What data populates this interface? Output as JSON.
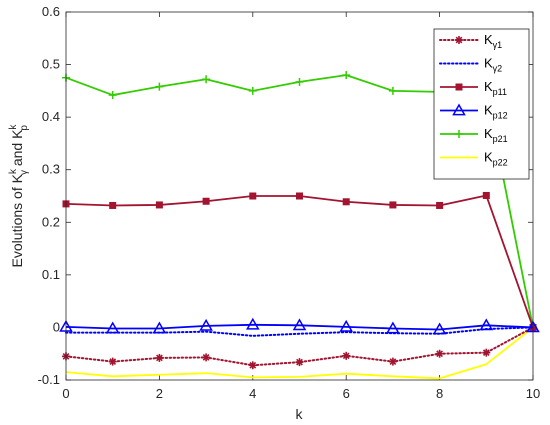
{
  "chart_data": {
    "type": "line",
    "xlabel": "k",
    "ylabel": "Evolutions of K",
    "ylabel_sup_1": "k",
    "ylabel_sub_1": "γ",
    "ylabel_mid": " and K",
    "ylabel_sup_2": "k",
    "ylabel_sub_2": "p",
    "xlim": [
      0,
      10
    ],
    "ylim": [
      -0.1,
      0.6
    ],
    "xticks": [
      "0",
      "2",
      "4",
      "6",
      "8",
      "10"
    ],
    "yticks": [
      "-0.1",
      "0",
      "0.1",
      "0.2",
      "0.3",
      "0.4",
      "0.5",
      "0.6"
    ],
    "x": [
      0,
      1,
      2,
      3,
      4,
      5,
      6,
      7,
      8,
      9,
      10
    ],
    "legend_position": "top-right",
    "series": [
      {
        "name": "Kγ1",
        "base": "K",
        "sub": "γ1",
        "color": "#A2142F",
        "style": "dotted",
        "marker": "star",
        "values": [
          -0.055,
          -0.065,
          -0.058,
          -0.057,
          -0.072,
          -0.066,
          -0.054,
          -0.065,
          -0.05,
          -0.048,
          0.0
        ]
      },
      {
        "name": "Kγ2",
        "base": "K",
        "sub": "γ2",
        "color": "#0000FF",
        "style": "dotted",
        "marker": "none",
        "values": [
          -0.01,
          -0.01,
          -0.01,
          -0.008,
          -0.016,
          -0.012,
          -0.009,
          -0.011,
          -0.012,
          -0.003,
          0.0
        ]
      },
      {
        "name": "Kp11",
        "base": "K",
        "sub": "p11",
        "color": "#A2142F",
        "style": "solid",
        "marker": "square",
        "values": [
          0.235,
          0.232,
          0.233,
          0.24,
          0.25,
          0.25,
          0.239,
          0.233,
          0.232,
          0.251,
          0.0
        ]
      },
      {
        "name": "Kp12",
        "base": "K",
        "sub": "p12",
        "color": "#0000FF",
        "style": "solid",
        "marker": "triangle",
        "values": [
          0.001,
          -0.002,
          -0.002,
          0.003,
          0.005,
          0.004,
          0.001,
          -0.002,
          -0.004,
          0.004,
          0.0
        ]
      },
      {
        "name": "Kp21",
        "base": "K",
        "sub": "p21",
        "color": "#33CC00",
        "style": "solid",
        "marker": "plus",
        "values": [
          0.475,
          0.442,
          0.458,
          0.472,
          0.45,
          0.467,
          0.48,
          0.45,
          0.448,
          0.447,
          0.0
        ]
      },
      {
        "name": "Kp22",
        "base": "K",
        "sub": "p22",
        "color": "#FFFF00",
        "style": "solid",
        "marker": "none",
        "values": [
          -0.085,
          -0.093,
          -0.09,
          -0.087,
          -0.095,
          -0.094,
          -0.088,
          -0.093,
          -0.097,
          -0.07,
          0.0
        ]
      }
    ]
  }
}
